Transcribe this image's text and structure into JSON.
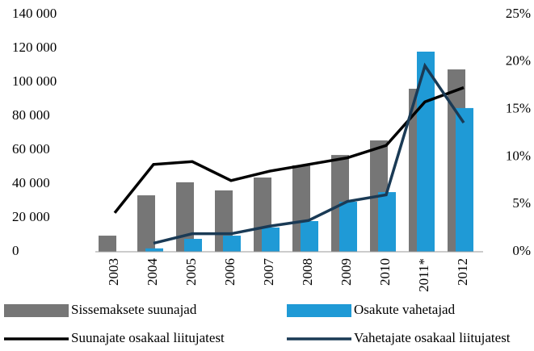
{
  "chart_data": {
    "type": "bar",
    "categories": [
      "2003",
      "2004",
      "2005",
      "2006",
      "2007",
      "2008",
      "2009",
      "2010",
      "2011*",
      "2012"
    ],
    "series": [
      {
        "name": "Sissemaksete suunajad",
        "type": "bar",
        "color": "#767676",
        "values": [
          9500,
          33300,
          41000,
          36200,
          43800,
          51000,
          57100,
          65700,
          96200,
          107600
        ]
      },
      {
        "name": "Osakute vahetajad",
        "type": "bar",
        "color": "#1f9ad6",
        "values": [
          0,
          2000,
          7600,
          9500,
          14300,
          18100,
          29500,
          35200,
          118100,
          84800
        ]
      },
      {
        "name": "Suunajate osakaal liitujatest",
        "type": "line",
        "axis": "y2",
        "color": "#000000",
        "values": [
          4.1,
          9.2,
          9.5,
          7.5,
          8.5,
          9.2,
          9.9,
          11.2,
          15.8,
          17.3
        ]
      },
      {
        "name": "Vahetajate osakaal liitujatest",
        "type": "line",
        "axis": "y2",
        "color": "#1a3a55",
        "values": [
          null,
          0.9,
          1.9,
          1.9,
          2.7,
          3.3,
          5.3,
          6.0,
          19.6,
          13.6
        ]
      }
    ],
    "ylim": [
      0,
      140000
    ],
    "yticks": [
      0,
      {
        "value": 20000,
        "label": "20 000"
      },
      {
        "value": 40000,
        "label": "40 000"
      },
      {
        "value": 60000,
        "label": "60 000"
      },
      {
        "value": 80000,
        "label": "80 000"
      },
      {
        "value": 100000,
        "label": "100 000"
      },
      {
        "value": 120000,
        "label": "120 000"
      },
      {
        "value": 140000,
        "label": "140 000"
      }
    ],
    "y2lim": [
      0,
      25
    ],
    "y2ticks": [
      {
        "value": 0,
        "label": "0%"
      },
      {
        "value": 5,
        "label": "5%"
      },
      {
        "value": 10,
        "label": "10%"
      },
      {
        "value": 15,
        "label": "15%"
      },
      {
        "value": 20,
        "label": "20%"
      },
      {
        "value": 25,
        "label": "25%"
      }
    ],
    "legend": "bottom"
  }
}
